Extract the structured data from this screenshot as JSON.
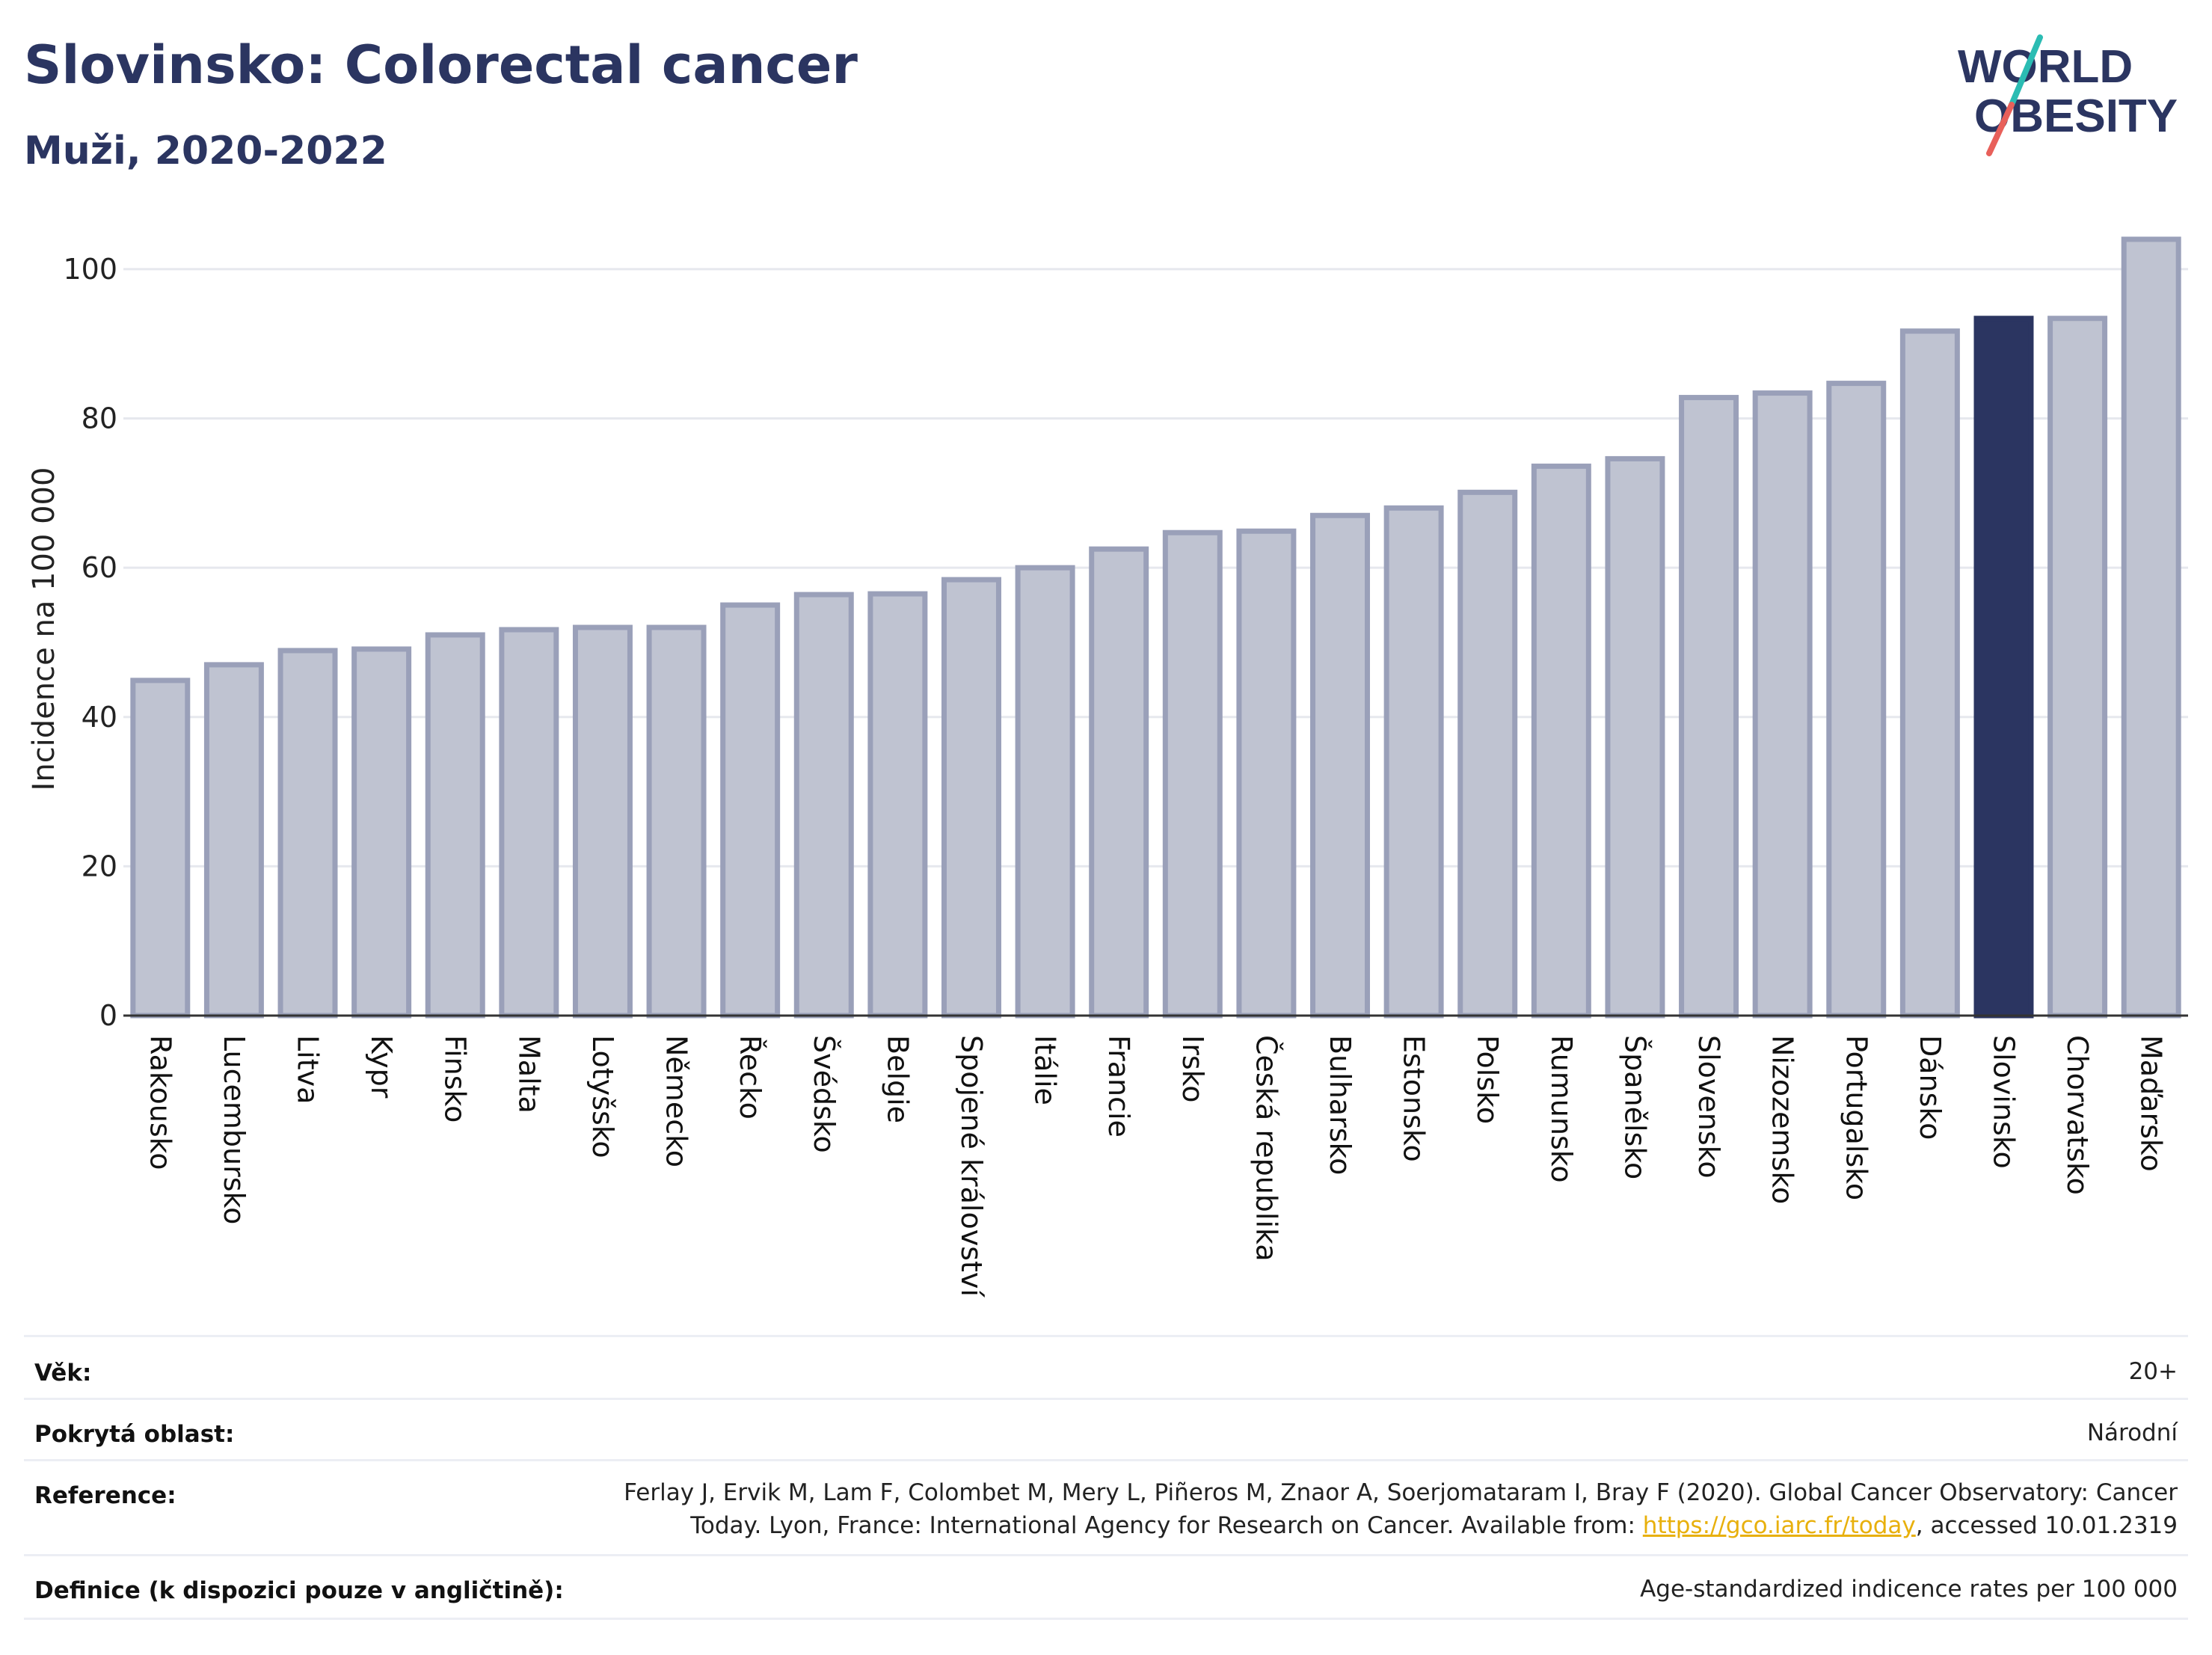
{
  "header": {
    "title": "Slovinsko: Colorectal cancer",
    "subtitle": "Muži, 2020-2022"
  },
  "logo": {
    "line1": "WORLD",
    "line2": "OBESITY",
    "colors": {
      "text": "#2b3561",
      "slash_teal": "#2bbcb3",
      "slash_red": "#e8605a"
    }
  },
  "chart_data": {
    "type": "bar",
    "title": "",
    "xlabel": "",
    "ylabel": "Incidence na 100 000",
    "ylim": [
      0,
      106
    ],
    "yticks": [
      0,
      20,
      40,
      60,
      80,
      100
    ],
    "grid": true,
    "highlight": "Slovinsko",
    "colors": {
      "bar": "#bfc3d1",
      "bar_stroke": "#9aa0b9",
      "highlight": "#2b3561",
      "grid": "#e6e8ee",
      "axis": "#333333"
    },
    "categories": [
      "Rakousko",
      "Lucembursko",
      "Litva",
      "Kypr",
      "Finsko",
      "Malta",
      "Lotyšsko",
      "Německo",
      "Řecko",
      "Švédsko",
      "Belgie",
      "Spojené království",
      "Itálie",
      "Francie",
      "Irsko",
      "Česká republika",
      "Bulharsko",
      "Estonsko",
      "Polsko",
      "Rumunsko",
      "Španělsko",
      "Slovensko",
      "Nizozemsko",
      "Portugalsko",
      "Dánsko",
      "Slovinsko",
      "Chorvatsko",
      "Maďarsko"
    ],
    "values": [
      44.9,
      47.0,
      48.9,
      49.1,
      51.0,
      51.7,
      52.0,
      52.0,
      55.0,
      56.4,
      56.5,
      58.4,
      60.0,
      62.5,
      64.7,
      64.9,
      67.0,
      68.0,
      70.1,
      73.6,
      74.6,
      82.8,
      83.4,
      84.7,
      91.7,
      93.4,
      93.4,
      104.0
    ]
  },
  "info": {
    "age_label": "Věk:",
    "age_value": "20+",
    "area_label": "Pokrytá oblast:",
    "area_value": "Národní",
    "reference_label": "Reference:",
    "reference_line1": "Ferlay J, Ervik M, Lam F, Colombet M, Mery L, Piñeros M, Znaor A, Soerjomataram I, Bray F (2020). Global Cancer Observatory: Cancer",
    "reference_line2_pre": "Today. Lyon, France: International Agency for Research on Cancer. Available from: ",
    "reference_link": "https://gco.iarc.fr/today",
    "reference_line2_post": ", accessed 10.01.2319",
    "definition_label": "Definice (k dispozici pouze v angličtině):",
    "definition_value": "Age-standardized indicence rates per 100 000"
  }
}
